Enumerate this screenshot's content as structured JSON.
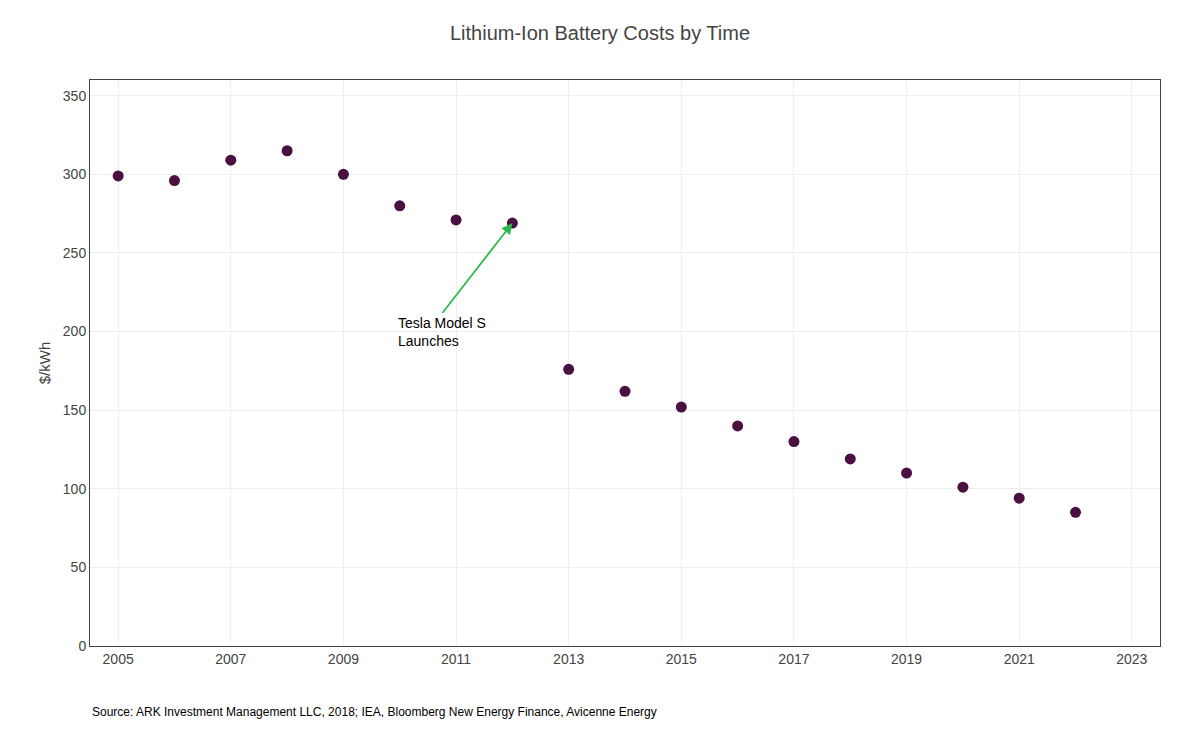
{
  "chart_data": {
    "type": "scatter",
    "title": "Lithium-Ion Battery Costs by Time",
    "ylabel": "$/kWh",
    "source": "Source: ARK Investment Management LLC, 2018; IEA, Bloomberg New Energy Finance, Avicenne Energy",
    "x": [
      2005,
      2006,
      2007,
      2008,
      2009,
      2010,
      2011,
      2012,
      2013,
      2014,
      2015,
      2016,
      2017,
      2018,
      2019,
      2020,
      2021,
      2022
    ],
    "values": [
      299,
      296,
      309,
      315,
      300,
      280,
      271,
      269,
      176,
      162,
      152,
      140,
      130,
      119,
      110,
      101,
      94,
      85
    ],
    "color": "#4a1040",
    "annotations": [
      {
        "text": "Tesla Model S\nLaunches",
        "x": 2012,
        "y": 269,
        "color": "#2db84b"
      }
    ],
    "xlim": [
      2004.5,
      2023.5
    ],
    "xticks": [
      2005,
      2007,
      2009,
      2011,
      2013,
      2015,
      2017,
      2019,
      2021,
      2023
    ],
    "ylim": [
      0,
      360
    ],
    "yticks": [
      0,
      50,
      100,
      150,
      200,
      250,
      300,
      350
    ],
    "grid": true
  }
}
